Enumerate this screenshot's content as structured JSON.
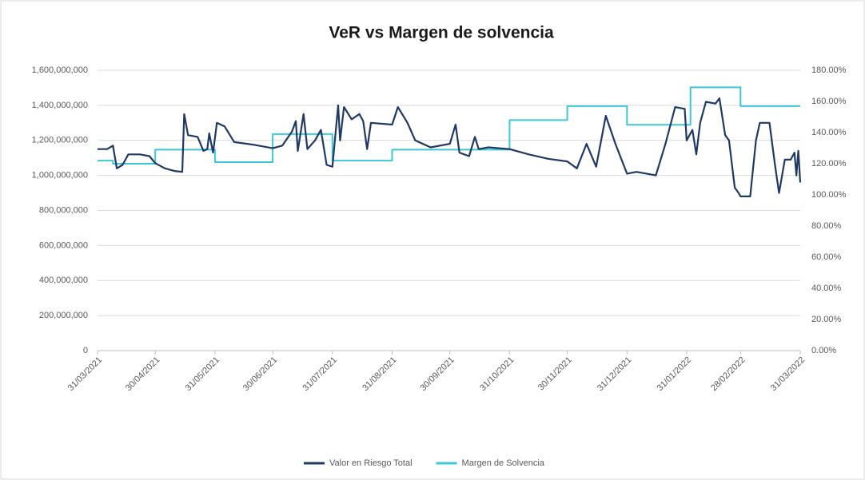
{
  "chart_data": {
    "type": "line",
    "title": "VeR vs Margen de solvencia",
    "xlim": [
      "31/03/2021",
      "31/03/2022"
    ],
    "xticks": [
      "31/03/2021",
      "30/04/2021",
      "31/05/2021",
      "30/06/2021",
      "31/07/2021",
      "31/08/2021",
      "30/09/2021",
      "31/10/2021",
      "30/11/2021",
      "31/12/2021",
      "31/01/2022",
      "28/02/2022",
      "31/03/2022"
    ],
    "ylim": [
      0,
      1600000000
    ],
    "yticks": [
      0,
      {
        "value": 200000000,
        "label": "200,000,000"
      },
      {
        "value": 400000000,
        "label": "400,000,000"
      },
      {
        "value": 600000000,
        "label": "600,000,000"
      },
      {
        "value": 800000000,
        "label": "800,000,000"
      },
      {
        "value": 1000000000,
        "label": "1,000,000,000"
      },
      {
        "value": 1200000000,
        "label": "1,200,000,000"
      },
      {
        "value": 1400000000,
        "label": "1,400,000,000"
      },
      {
        "value": 1600000000,
        "label": "1,600,000,000"
      }
    ],
    "y2lim": [
      0,
      180
    ],
    "y2ticks": [
      {
        "value": 0,
        "label": "0.00%"
      },
      {
        "value": 20,
        "label": "20.00%"
      },
      {
        "value": 40,
        "label": "40.00%"
      },
      {
        "value": 60,
        "label": "60.00%"
      },
      {
        "value": 80,
        "label": "80.00%"
      },
      {
        "value": 100,
        "label": "100.00%"
      },
      {
        "value": 120,
        "label": "120.00%"
      },
      {
        "value": 140,
        "label": "140.00%"
      },
      {
        "value": 160,
        "label": "160.00%"
      },
      {
        "value": 180,
        "label": "180.00%"
      }
    ],
    "grid": true,
    "legend": "bottom",
    "series": [
      {
        "name": "Valor en Riesgo Total",
        "color": "#1f3864",
        "axis": "y",
        "x": [
          "31/03/2021",
          "05/04/2021",
          "08/04/2021",
          "10/04/2021",
          "13/04/2021",
          "16/04/2021",
          "22/04/2021",
          "27/04/2021",
          "30/04/2021",
          "05/05/2021",
          "10/05/2021",
          "14/05/2021",
          "15/05/2021",
          "17/05/2021",
          "22/05/2021",
          "25/05/2021",
          "27/05/2021",
          "28/05/2021",
          "30/05/2021",
          "01/06/2021",
          "05/06/2021",
          "10/06/2021",
          "20/06/2021",
          "30/06/2021",
          "05/07/2021",
          "10/07/2021",
          "12/07/2021",
          "13/07/2021",
          "16/07/2021",
          "18/07/2021",
          "22/07/2021",
          "25/07/2021",
          "28/07/2021",
          "31/07/2021",
          "03/08/2021",
          "04/08/2021",
          "06/08/2021",
          "10/08/2021",
          "14/08/2021",
          "16/08/2021",
          "18/08/2021",
          "20/08/2021",
          "31/08/2021",
          "03/09/2021",
          "08/09/2021",
          "12/09/2021",
          "20/09/2021",
          "30/09/2021",
          "03/10/2021",
          "05/10/2021",
          "10/10/2021",
          "13/10/2021",
          "15/10/2021",
          "20/10/2021",
          "31/10/2021",
          "10/11/2021",
          "20/11/2021",
          "30/11/2021",
          "05/12/2021",
          "10/12/2021",
          "15/12/2021",
          "20/12/2021",
          "25/12/2021",
          "31/12/2021",
          "05/01/2022",
          "15/01/2022",
          "20/01/2022",
          "25/01/2022",
          "30/01/2022",
          "31/01/2022",
          "03/02/2022",
          "05/02/2022",
          "07/02/2022",
          "10/02/2022",
          "15/02/2022",
          "17/02/2022",
          "20/02/2022",
          "22/02/2022",
          "25/02/2022",
          "27/02/2022",
          "28/02/2022",
          "05/03/2022",
          "08/03/2022",
          "10/03/2022",
          "15/03/2022",
          "18/03/2022",
          "20/03/2022",
          "23/03/2022",
          "26/03/2022",
          "28/03/2022",
          "29/03/2022",
          "30/03/2022",
          "31/03/2022"
        ],
        "values": [
          1150000000,
          1150000000,
          1170000000,
          1040000000,
          1060000000,
          1120000000,
          1120000000,
          1110000000,
          1070000000,
          1040000000,
          1025000000,
          1020000000,
          1350000000,
          1230000000,
          1220000000,
          1140000000,
          1150000000,
          1240000000,
          1130000000,
          1300000000,
          1280000000,
          1190000000,
          1175000000,
          1155000000,
          1170000000,
          1250000000,
          1310000000,
          1140000000,
          1350000000,
          1150000000,
          1200000000,
          1260000000,
          1060000000,
          1050000000,
          1400000000,
          1200000000,
          1390000000,
          1320000000,
          1350000000,
          1310000000,
          1150000000,
          1300000000,
          1290000000,
          1390000000,
          1300000000,
          1200000000,
          1160000000,
          1180000000,
          1290000000,
          1130000000,
          1110000000,
          1220000000,
          1150000000,
          1160000000,
          1150000000,
          1120000000,
          1095000000,
          1080000000,
          1040000000,
          1180000000,
          1050000000,
          1340000000,
          1180000000,
          1010000000,
          1020000000,
          1000000000,
          1180000000,
          1390000000,
          1380000000,
          1200000000,
          1260000000,
          1120000000,
          1300000000,
          1420000000,
          1410000000,
          1440000000,
          1230000000,
          1200000000,
          930000000,
          900000000,
          880000000,
          880000000,
          1200000000,
          1300000000,
          1300000000,
          1050000000,
          900000000,
          1090000000,
          1090000000,
          1130000000,
          1000000000,
          1140000000,
          960000000
        ]
      },
      {
        "name": "Margen de Solvencia",
        "color": "#3cc8d4",
        "axis": "y2",
        "step": "post",
        "x": [
          "31/03/2021",
          "08/04/2021",
          "30/04/2021",
          "31/05/2021",
          "30/06/2021",
          "31/07/2021",
          "31/08/2021",
          "31/10/2021",
          "30/11/2021",
          "31/12/2021",
          "02/02/2022",
          "28/02/2022",
          "31/03/2022"
        ],
        "values": [
          122,
          120,
          129,
          121,
          139,
          122,
          129,
          148,
          157,
          145,
          169,
          157,
          157
        ]
      }
    ]
  }
}
